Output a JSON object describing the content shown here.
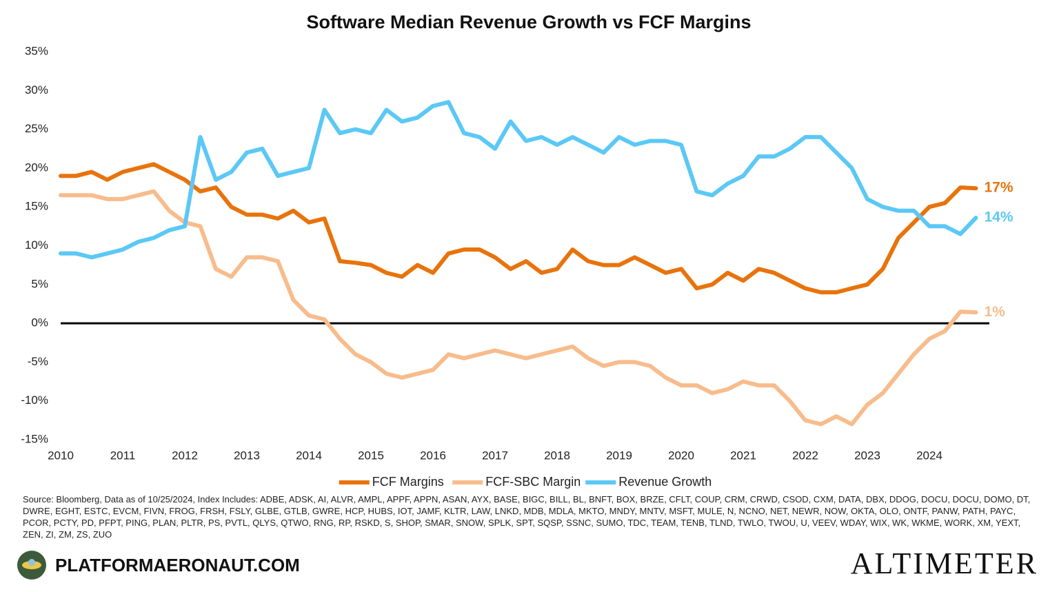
{
  "chart_data": {
    "type": "line",
    "title": "Software Median Revenue Growth vs FCF Margins",
    "x": [
      2010,
      2010.25,
      2010.5,
      2010.75,
      2011,
      2011.25,
      2011.5,
      2011.75,
      2012,
      2012.25,
      2012.5,
      2012.75,
      2013,
      2013.25,
      2013.5,
      2013.75,
      2014,
      2014.25,
      2014.5,
      2014.75,
      2015,
      2015.25,
      2015.5,
      2015.75,
      2016,
      2016.25,
      2016.5,
      2016.75,
      2017,
      2017.25,
      2017.5,
      2017.75,
      2018,
      2018.25,
      2018.5,
      2018.75,
      2019,
      2019.25,
      2019.5,
      2019.75,
      2020,
      2020.25,
      2020.5,
      2020.75,
      2021,
      2021.25,
      2021.5,
      2021.75,
      2022,
      2022.25,
      2022.5,
      2022.75,
      2023,
      2023.25,
      2023.5,
      2023.75,
      2024,
      2024.25,
      2024.5,
      2024.75
    ],
    "series": [
      {
        "name": "FCF Margins",
        "color": "#E8730C",
        "end_label": "17%",
        "values": [
          19,
          19,
          19.5,
          18.5,
          19.5,
          20,
          20.5,
          19.5,
          18.5,
          17,
          17.5,
          15,
          14,
          14,
          13.5,
          14.5,
          13,
          13.5,
          8,
          7.8,
          7.5,
          6.5,
          6,
          7.5,
          6.5,
          9,
          9.5,
          9.5,
          8.5,
          7,
          8,
          6.5,
          7,
          9.5,
          8,
          7.5,
          7.5,
          8.5,
          7.5,
          6.5,
          7,
          4.5,
          5,
          6.5,
          5.5,
          7,
          6.5,
          5.5,
          4.5,
          4,
          4,
          4.5,
          5,
          7,
          11,
          13,
          15,
          15.5,
          17.5,
          17.4
        ]
      },
      {
        "name": "FCF-SBC Margin",
        "color": "#F8BC8C",
        "end_label": "1%",
        "values": [
          16.5,
          16.5,
          16.5,
          16,
          16,
          16.5,
          17,
          14.5,
          13,
          12.5,
          7,
          6,
          8.5,
          8.5,
          8,
          3,
          1,
          0.5,
          -2,
          -4,
          -5,
          -6.5,
          -7,
          -6.5,
          -6,
          -4,
          -4.5,
          -4,
          -3.5,
          -4,
          -4.5,
          -4,
          -3.5,
          -3,
          -4.5,
          -5.5,
          -5,
          -5,
          -5.5,
          -7,
          -8,
          -8,
          -9,
          -8.5,
          -7.5,
          -8,
          -8,
          -10,
          -12.5,
          -13,
          -12,
          -13,
          -10.5,
          -9,
          -6.5,
          -4,
          -2,
          -1,
          1.5,
          1.4
        ]
      },
      {
        "name": "Revenue Growth",
        "color": "#5BC8F5",
        "end_label": "14%",
        "values": [
          9,
          9,
          8.5,
          9,
          9.5,
          10.5,
          11,
          12,
          12.5,
          24,
          18.5,
          19.5,
          22,
          22.5,
          19,
          19.5,
          20,
          27.5,
          24.5,
          25,
          24.5,
          27.5,
          26,
          26.5,
          28,
          28.5,
          24.5,
          24,
          22.5,
          26,
          23.5,
          24,
          23,
          24,
          23,
          22,
          24,
          23,
          23.5,
          23.5,
          23,
          17,
          16.5,
          18,
          19,
          21.5,
          21.5,
          22.5,
          24,
          24,
          22,
          20,
          16,
          15,
          14.5,
          14.5,
          12.5,
          12.5,
          11.5,
          13.6
        ]
      }
    ],
    "xlim": [
      2010,
      2025
    ],
    "xticks": [
      2010,
      2011,
      2012,
      2013,
      2014,
      2015,
      2016,
      2017,
      2018,
      2019,
      2020,
      2021,
      2022,
      2023,
      2024
    ],
    "ylim": [
      -15,
      35
    ],
    "yticks": [
      {
        "value": -15,
        "label": "-15%"
      },
      {
        "value": -10,
        "label": "-10%"
      },
      {
        "value": -5,
        "label": "-5%"
      },
      {
        "value": 0,
        "label": "0%"
      },
      {
        "value": 5,
        "label": "5%"
      },
      {
        "value": 10,
        "label": "10%"
      },
      {
        "value": 15,
        "label": "15%"
      },
      {
        "value": 20,
        "label": "20%"
      },
      {
        "value": 25,
        "label": "25%"
      },
      {
        "value": 30,
        "label": "30%"
      },
      {
        "value": 35,
        "label": "35%"
      }
    ],
    "legend": "bottom",
    "grid": false
  },
  "footer": {
    "source": "Source: Bloomberg, Data as of 10/25/2024, Index Includes: ADBE, ADSK, AI, ALVR, AMPL, APPF, APPN, ASAN, AYX, BASE, BIGC, BILL, BL, BNFT, BOX, BRZE, CFLT, COUP, CRM, CRWD, CSOD, CXM, DATA, DBX, DDOG, DOCU, DOCU, DOMO, DT, DWRE, EGHT, ESTC, EVCM, FIVN, FROG, FRSH, FSLY, GLBE, GTLB, GWRE, HCP, HUBS, IOT, JAMF, KLTR, LAW, LNKD, MDB, MDLA, MKTO, MNDY, MNTV, MSFT, MULE, N, NCNO, NET, NEWR, NOW, OKTA, OLO, ONTF, PANW, PATH, PAYC, PCOR, PCTY, PD, PFPT, PING, PLAN, PLTR, PS, PVTL, QLYS, QTWO, RNG, RP, RSKD, S, SHOP, SMAR, SNOW, SPLK, SPT, SQSP, SSNC, SUMO, TDC, TEAM, TENB, TLND, TWLO, TWOU, U, VEEV, WDAY, WIX, WK, WKME, WORK, XM, YEXT, ZEN, ZI, ZM, ZS, ZUO",
    "logo_text": "PLATFORMAERONAUT.COM",
    "brand": "ALTIMETER"
  }
}
